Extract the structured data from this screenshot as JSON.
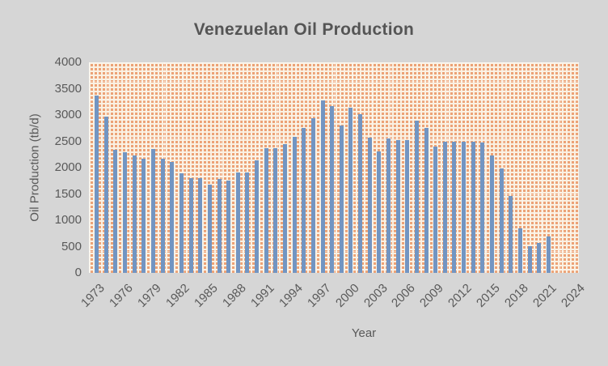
{
  "title": "Venezuelan Oil Production",
  "colors": {
    "background": "#d6d6d6",
    "bar": "#7295c2",
    "pattern_orange": "#eca276",
    "pattern_cream": "#faf1e3",
    "text": "#595959"
  },
  "chart_data": {
    "type": "bar",
    "title": "Venezuelan Oil Production",
    "xlabel": "Year",
    "ylabel": "Oil Production (tb/d)",
    "ylim": [
      0,
      4000
    ],
    "ytick_step": 500,
    "yticks": [
      4000,
      3500,
      3000,
      2500,
      2000,
      1500,
      1000,
      500,
      0
    ],
    "xticks_shown": [
      1973,
      1976,
      1979,
      1982,
      1985,
      1988,
      1991,
      1994,
      1997,
      2000,
      2003,
      2006,
      2009,
      2012,
      2015,
      2018,
      2021,
      2024
    ],
    "grid": false,
    "legend": false,
    "categories": [
      1973,
      1974,
      1975,
      1976,
      1977,
      1978,
      1979,
      1980,
      1981,
      1982,
      1983,
      1984,
      1985,
      1986,
      1987,
      1988,
      1989,
      1990,
      1991,
      1992,
      1993,
      1994,
      1995,
      1996,
      1997,
      1998,
      1999,
      2000,
      2001,
      2002,
      2003,
      2004,
      2005,
      2006,
      2007,
      2008,
      2009,
      2010,
      2011,
      2012,
      2013,
      2014,
      2015,
      2016,
      2017,
      2018,
      2019,
      2020,
      2021
    ],
    "values": [
      3366,
      2976,
      2346,
      2294,
      2238,
      2166,
      2356,
      2168,
      2102,
      1895,
      1801,
      1798,
      1677,
      1787,
      1752,
      1903,
      1907,
      2135,
      2375,
      2371,
      2450,
      2588,
      2750,
      2938,
      3280,
      3167,
      2800,
      3140,
      3010,
      2570,
      2310,
      2555,
      2525,
      2525,
      2890,
      2750,
      2400,
      2490,
      2490,
      2490,
      2490,
      2475,
      2235,
      1985,
      1460,
      845,
      510,
      570,
      690
    ]
  }
}
